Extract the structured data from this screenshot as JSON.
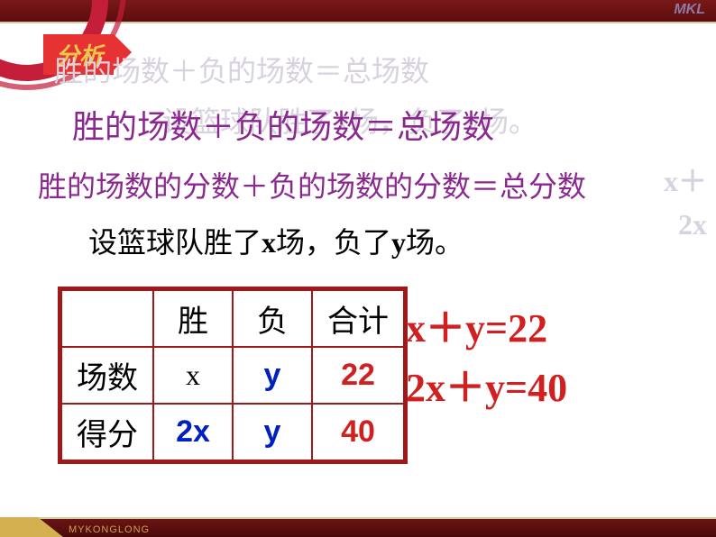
{
  "header": {
    "logo_text": "MKL",
    "tag_label": "分析"
  },
  "shadow": {
    "l1": "胜的场数＋负的场数＝总场数",
    "l2": "设篮球队胜了x场，负了y场。",
    "l3": "x＋",
    "l4": "2x"
  },
  "lines": {
    "eq1": "胜的场数＋负的场数＝总场数",
    "eq2": "胜的场数的分数＋负的场数的分数＝总分数",
    "setup_pre": "设篮球队胜了",
    "setup_x": "x",
    "setup_mid": "场，负了",
    "setup_y": "y",
    "setup_post": "场。"
  },
  "table": {
    "headers": [
      "",
      "胜",
      "负",
      "合计"
    ],
    "rows": [
      {
        "label": "场数",
        "c1": "x",
        "c2": "y",
        "c3": "22"
      },
      {
        "label": "得分",
        "c1": "2x",
        "c2": "y",
        "c3": "40"
      }
    ]
  },
  "equations": {
    "line1_lhs_x": "x",
    "line1_plus": "＋",
    "line1_lhs_y": "y=22",
    "line2_lhs_x": "2x",
    "line2_plus": "＋",
    "line2_lhs_y": "y=40"
  },
  "footer": {
    "brand": "MYKONGLONG"
  },
  "colors": {
    "purple": "#8b2890",
    "red": "#d02020",
    "blue": "#0020c0",
    "table_border": "#a01818",
    "tag_bg": "#e63232",
    "tag_text": "#e8c84a",
    "bar_dark": "#5c0d0d",
    "shadow_text": "#d8d2de"
  }
}
